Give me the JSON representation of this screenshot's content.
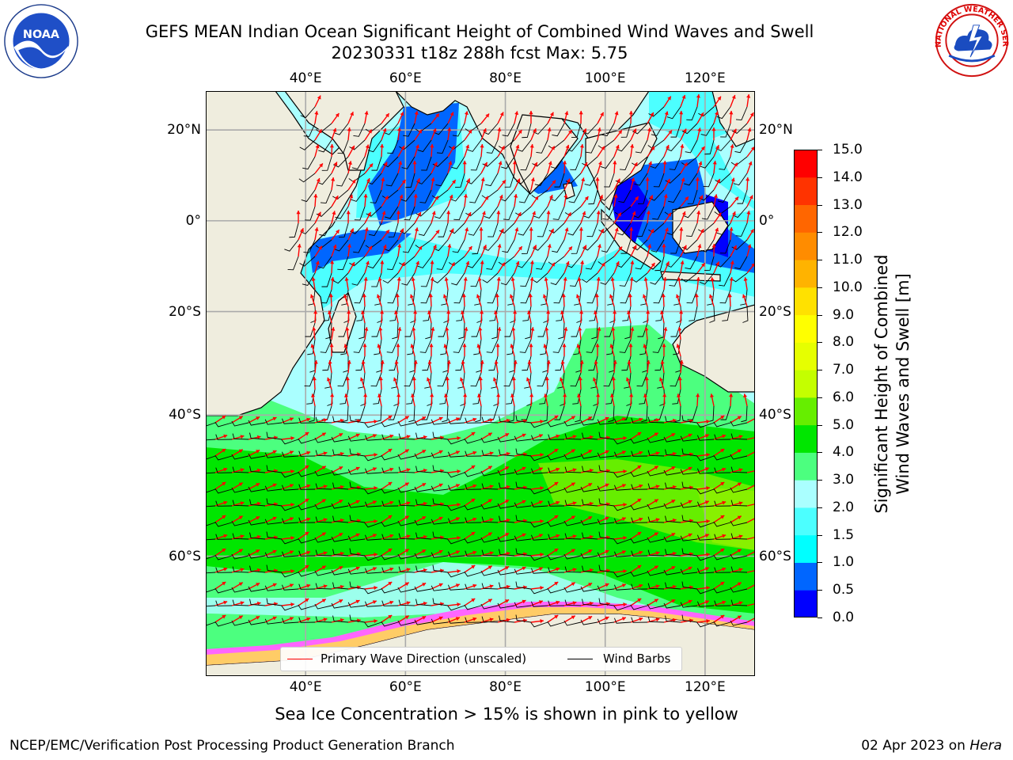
{
  "header": {
    "title_line1": "GEFS MEAN Indian Ocean Significant Height of Combined Wind Waves and Swell",
    "title_line2": "20230331 t18z 288h fcst   Max: 5.75"
  },
  "logos": {
    "noaa": {
      "text": "NOAA",
      "ring_text": "NATIONAL OCEANIC AND ATMOSPHERIC ADMINISTRATION · U.S. DEPARTMENT OF COMMERCE"
    },
    "nws": {
      "ring_text": "NATIONAL WEATHER SERVICE"
    }
  },
  "map": {
    "lon_ticks": [
      "40°E",
      "60°E",
      "80°E",
      "100°E",
      "120°E"
    ],
    "lon_values": [
      40,
      60,
      80,
      100,
      120
    ],
    "lat_ticks_left": [
      "20°N",
      "0°",
      "20°S",
      "40°S",
      "60°S"
    ],
    "lat_values": [
      20,
      0,
      -20,
      -40,
      -60
    ],
    "extent": {
      "lon_min": 20,
      "lon_max": 130,
      "lat_min": -71,
      "lat_max": 28
    },
    "grid": true,
    "projection": "mercator"
  },
  "colorbar": {
    "label": "Significant Height of Combined Wind Waves and Swell [m]",
    "label_line1": "Significant Height of Combined",
    "label_line2": "Wind Waves and Swell [m]",
    "ticks": [
      "0.0",
      "0.5",
      "1.0",
      "1.5",
      "2.0",
      "3.0",
      "4.0",
      "5.0",
      "6.0",
      "7.0",
      "8.0",
      "9.0",
      "10.0",
      "11.0",
      "12.0",
      "13.0",
      "14.0",
      "15.0"
    ],
    "bands": [
      {
        "from": 0.0,
        "to": 0.5,
        "color": "#0000ff"
      },
      {
        "from": 0.5,
        "to": 1.0,
        "color": "#0066ff"
      },
      {
        "from": 1.0,
        "to": 1.5,
        "color": "#00ffff"
      },
      {
        "from": 1.5,
        "to": 2.0,
        "color": "#4cffff"
      },
      {
        "from": 2.0,
        "to": 3.0,
        "color": "#aaffff"
      },
      {
        "from": 3.0,
        "to": 4.0,
        "color": "#4cff7f"
      },
      {
        "from": 4.0,
        "to": 5.0,
        "color": "#00e600"
      },
      {
        "from": 5.0,
        "to": 6.0,
        "color": "#66ee00"
      },
      {
        "from": 6.0,
        "to": 7.0,
        "color": "#c4ff00"
      },
      {
        "from": 7.0,
        "to": 8.0,
        "color": "#e6ff00"
      },
      {
        "from": 8.0,
        "to": 9.0,
        "color": "#ffff00"
      },
      {
        "from": 9.0,
        "to": 10.0,
        "color": "#ffe100"
      },
      {
        "from": 10.0,
        "to": 11.0,
        "color": "#ffb300"
      },
      {
        "from": 11.0,
        "to": 12.0,
        "color": "#ff8c00"
      },
      {
        "from": 12.0,
        "to": 13.0,
        "color": "#ff6600"
      },
      {
        "from": 13.0,
        "to": 14.0,
        "color": "#ff3300"
      },
      {
        "from": 14.0,
        "to": 15.0,
        "color": "#ff0000"
      }
    ]
  },
  "legend": {
    "wave_label": "Primary Wave Direction (unscaled)",
    "wind_label": "Wind Barbs",
    "wave_color": "#ff0000",
    "wind_color": "#000000"
  },
  "footer": {
    "ice_note": "Sea Ice Concentration > 15% is shown in pink to yellow",
    "credit": "NCEP/EMC/Verification Post Processing Product Generation Branch",
    "date": "02 Apr 2023 on ",
    "host": "Hera"
  },
  "colors": {
    "land": "#efedde",
    "ice_colors": [
      "#ff66ff",
      "#ff99cc",
      "#ffcc66",
      "#ffee99"
    ]
  }
}
